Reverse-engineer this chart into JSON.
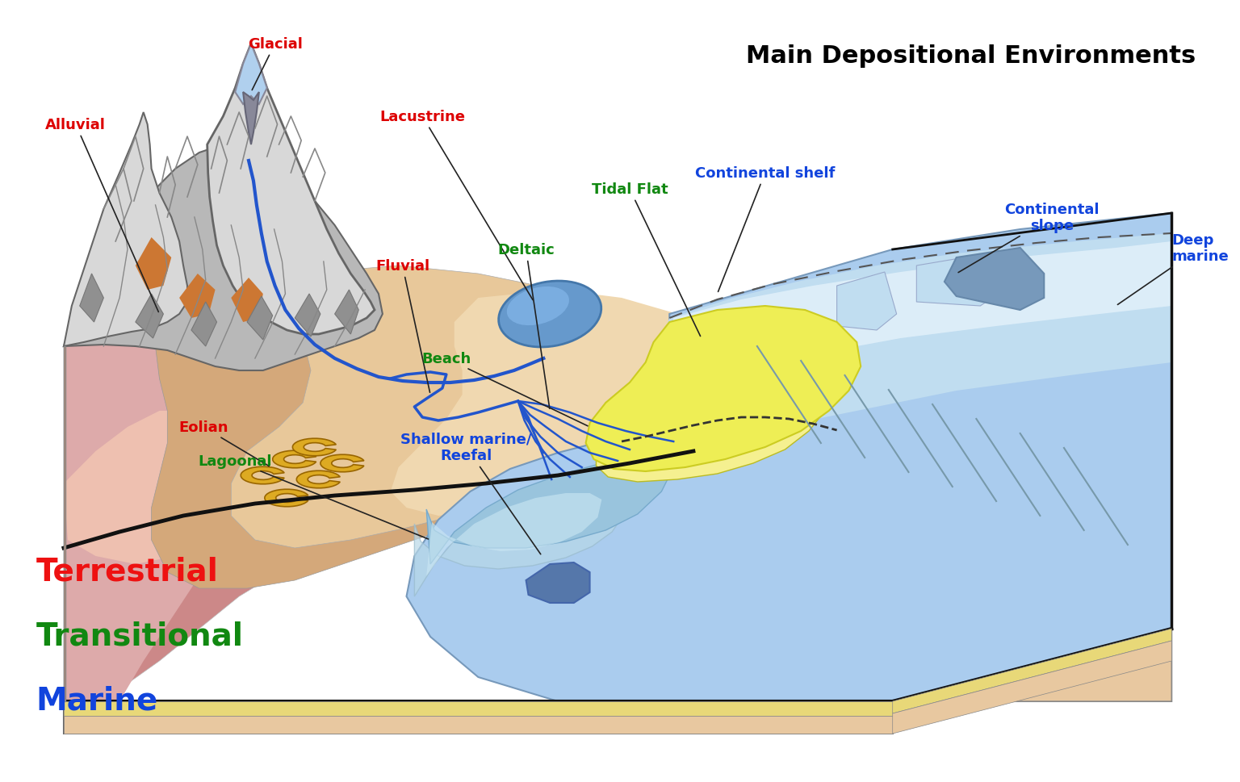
{
  "title": "Main Depositional Environments",
  "title_fontsize": 22,
  "title_color": "#000000",
  "title_fontweight": "bold",
  "background_color": "#ffffff",
  "legend_items": [
    {
      "label": "Terrestrial",
      "color": "#ee1111",
      "fontsize": 28,
      "fontweight": "bold"
    },
    {
      "label": "Transitional",
      "color": "#118811",
      "fontsize": 28,
      "fontweight": "bold"
    },
    {
      "label": "Marine",
      "color": "#1144dd",
      "fontsize": 28,
      "fontweight": "bold"
    }
  ],
  "colors": {
    "mountain_light": "#d8d8d8",
    "mountain_mid": "#b8b8b8",
    "mountain_dark": "#a0a0a0",
    "mountain_shadow": "#909090",
    "orange_brown": "#cc7733",
    "red_soil": "#cc8888",
    "red_soil_dark": "#bb7777",
    "pink_soil": "#ddaaaa",
    "sandy_tan": "#d4a87a",
    "sandy_light": "#e8c89a",
    "sandy_pale": "#f0d8b0",
    "yellow_beach": "#eeee55",
    "yellow_pale": "#f5f090",
    "ocean_deep": "#99bbdd",
    "ocean_mid": "#aaccee",
    "ocean_light": "#c0ddf0",
    "ocean_pale": "#d8eef8",
    "ocean_very_light": "#e8f4fc",
    "shelf_blue": "#7799cc",
    "dark_blue_patch": "#5577aa",
    "glacier_blue": "#b0d0ee",
    "glacier_gray": "#888899",
    "lagoon_blue": "#99ccdd",
    "black_line": "#111111",
    "block_cream": "#e8c8a0",
    "block_yellow": "#e8d878",
    "block_tan": "#c8a888",
    "block_pink": "#ddaaaa"
  }
}
